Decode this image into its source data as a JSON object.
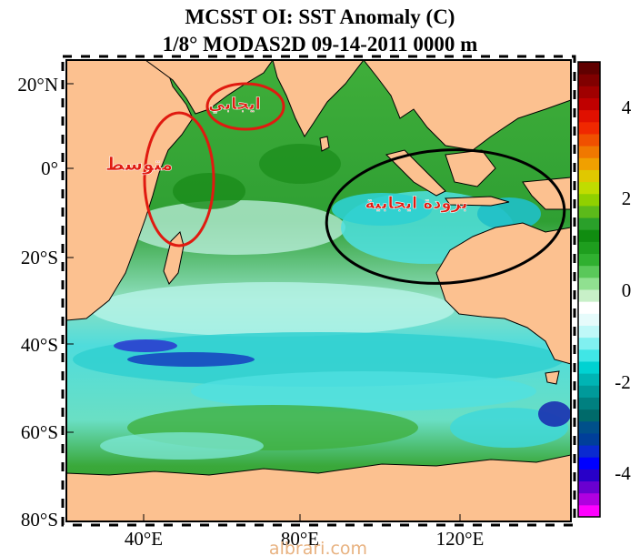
{
  "title": {
    "line1": "MCSST OI:  SST Anomaly (C)",
    "line2": "1/8° MODAS2D 09-14-2011 0000 m"
  },
  "axes": {
    "lat_labels": [
      "20°N",
      "0°",
      "20°S",
      "40°S",
      "60°S",
      "80°S"
    ],
    "lon_labels": [
      "40°E",
      "80°E",
      "120°E"
    ]
  },
  "colorbar": {
    "range": [
      -5,
      5
    ],
    "tick_labels": [
      "4",
      "2",
      "0",
      "-2",
      "-4"
    ],
    "colors": [
      "#ff00ff",
      "#b000e0",
      "#6a00d0",
      "#2800c8",
      "#0000ff",
      "#0a2ad0",
      "#003f9a",
      "#00508a",
      "#006a6a",
      "#008080",
      "#009a9a",
      "#00b4b4",
      "#00d2d2",
      "#40e6e6",
      "#80f0f0",
      "#bff8f8",
      "#e6fbfb",
      "#ffffff",
      "#c8f0c8",
      "#90e090",
      "#5ac85a",
      "#30b030",
      "#1e9e1e",
      "#108c10",
      "#2aa02a",
      "#5cba1a",
      "#90d000",
      "#c0dc00",
      "#e0c800",
      "#f0a000",
      "#f07800",
      "#f05000",
      "#f02800",
      "#e01000",
      "#c00000",
      "#a00000",
      "#800000",
      "#600000"
    ]
  },
  "annotations": {
    "positive": "ايجابي",
    "neutral": "متوسط",
    "cool_positive": "برودة ايجابية"
  },
  "colors": {
    "land": "#fcc190",
    "ocean_green": "#2fa32f",
    "ocean_cyan": "#3fe0e0",
    "annotation_red": "#e01a10",
    "annotation_black": "#000000"
  },
  "watermark": "albrari.com"
}
